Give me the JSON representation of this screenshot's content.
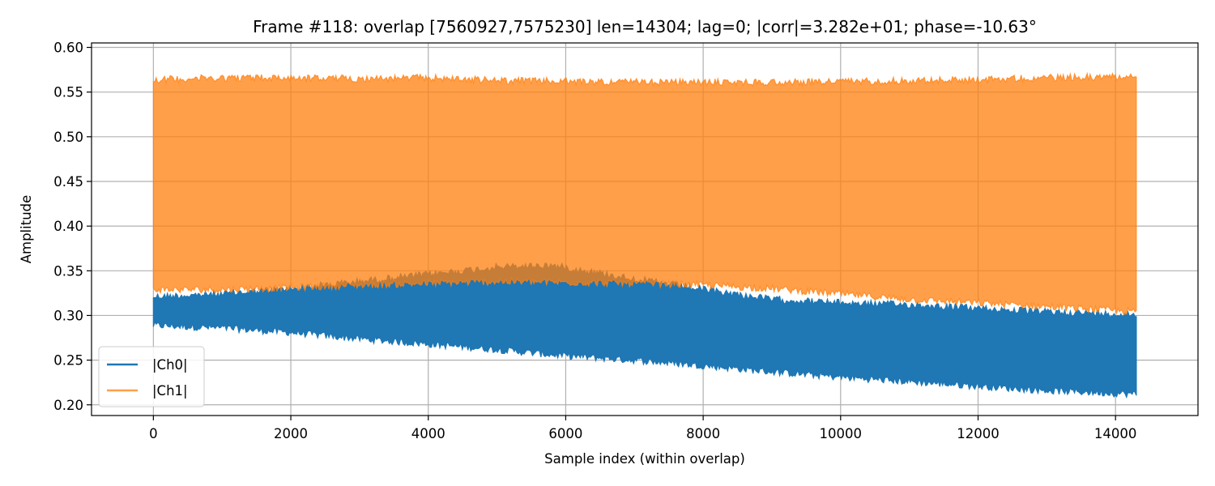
{
  "chart_data": {
    "type": "line",
    "title": "Frame #118: overlap [7560927,7575230]  len=14304; lag=0; |corr|=3.282e+01; phase=-10.63°",
    "xlabel": "Sample index (within overlap)",
    "ylabel": "Amplitude",
    "xlim": [
      -900,
      15200
    ],
    "ylim": [
      0.188,
      0.605
    ],
    "x_ticks": [
      0,
      2000,
      4000,
      6000,
      8000,
      10000,
      12000,
      14000
    ],
    "y_ticks": [
      0.2,
      0.25,
      0.3,
      0.35,
      0.4,
      0.45,
      0.5,
      0.55,
      0.6
    ],
    "grid": true,
    "legend": "lower-left",
    "series": [
      {
        "name": "|Ch0|",
        "color": "#1f77b4",
        "opacity": 1.0,
        "x": [
          0,
          1000,
          2000,
          3000,
          4000,
          5000,
          5800,
          7000,
          8000,
          9000,
          10000,
          11000,
          12000,
          13000,
          14303
        ],
        "upper": [
          0.325,
          0.328,
          0.334,
          0.342,
          0.35,
          0.358,
          0.36,
          0.345,
          0.333,
          0.322,
          0.318,
          0.316,
          0.312,
          0.308,
          0.305
        ],
        "lower": [
          0.285,
          0.282,
          0.277,
          0.27,
          0.264,
          0.258,
          0.252,
          0.246,
          0.24,
          0.233,
          0.227,
          0.222,
          0.217,
          0.212,
          0.208
        ]
      },
      {
        "name": "|Ch1|",
        "color": "#ff7f0e",
        "opacity": 0.75,
        "x": [
          0,
          1000,
          2000,
          3000,
          4000,
          5000,
          6000,
          7000,
          8000,
          9000,
          10000,
          11000,
          12000,
          13000,
          14303
        ],
        "upper": [
          0.568,
          0.57,
          0.57,
          0.569,
          0.57,
          0.567,
          0.566,
          0.565,
          0.565,
          0.565,
          0.566,
          0.567,
          0.568,
          0.57,
          0.572
        ],
        "lower": [
          0.325,
          0.325,
          0.327,
          0.33,
          0.332,
          0.334,
          0.333,
          0.332,
          0.33,
          0.326,
          0.32,
          0.314,
          0.31,
          0.306,
          0.3
        ]
      }
    ]
  }
}
